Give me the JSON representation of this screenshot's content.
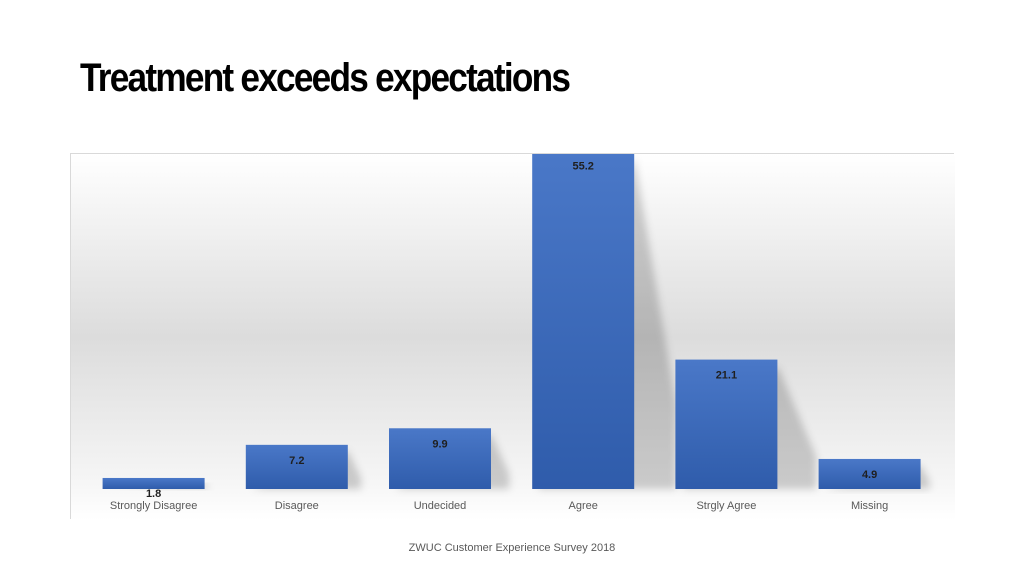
{
  "slide": {
    "title": "Treatment exceeds expectations",
    "footer": "ZWUC Customer Experience Survey 2018"
  },
  "colors": {
    "bar": "#4472c4",
    "bar_gradient_top": "#4a78c8",
    "bar_gradient_bottom": "#2f5cab",
    "label_text": "#1f1f1f",
    "axis_text": "#595959"
  },
  "chart_data": {
    "type": "bar",
    "categories": [
      "Strongly Disagree",
      "Disagree",
      "Undecided",
      "Agree",
      "Strgly Agree",
      "Missing"
    ],
    "values": [
      1.8,
      7.2,
      9.9,
      55.2,
      21.1,
      4.9
    ],
    "data_labels": [
      "1.8",
      "7.2",
      "9.9",
      "55.2",
      "21.1",
      "4.9"
    ],
    "ylim": [
      0,
      60
    ],
    "grid": false,
    "legend": "none",
    "y_axis_visible": false
  }
}
